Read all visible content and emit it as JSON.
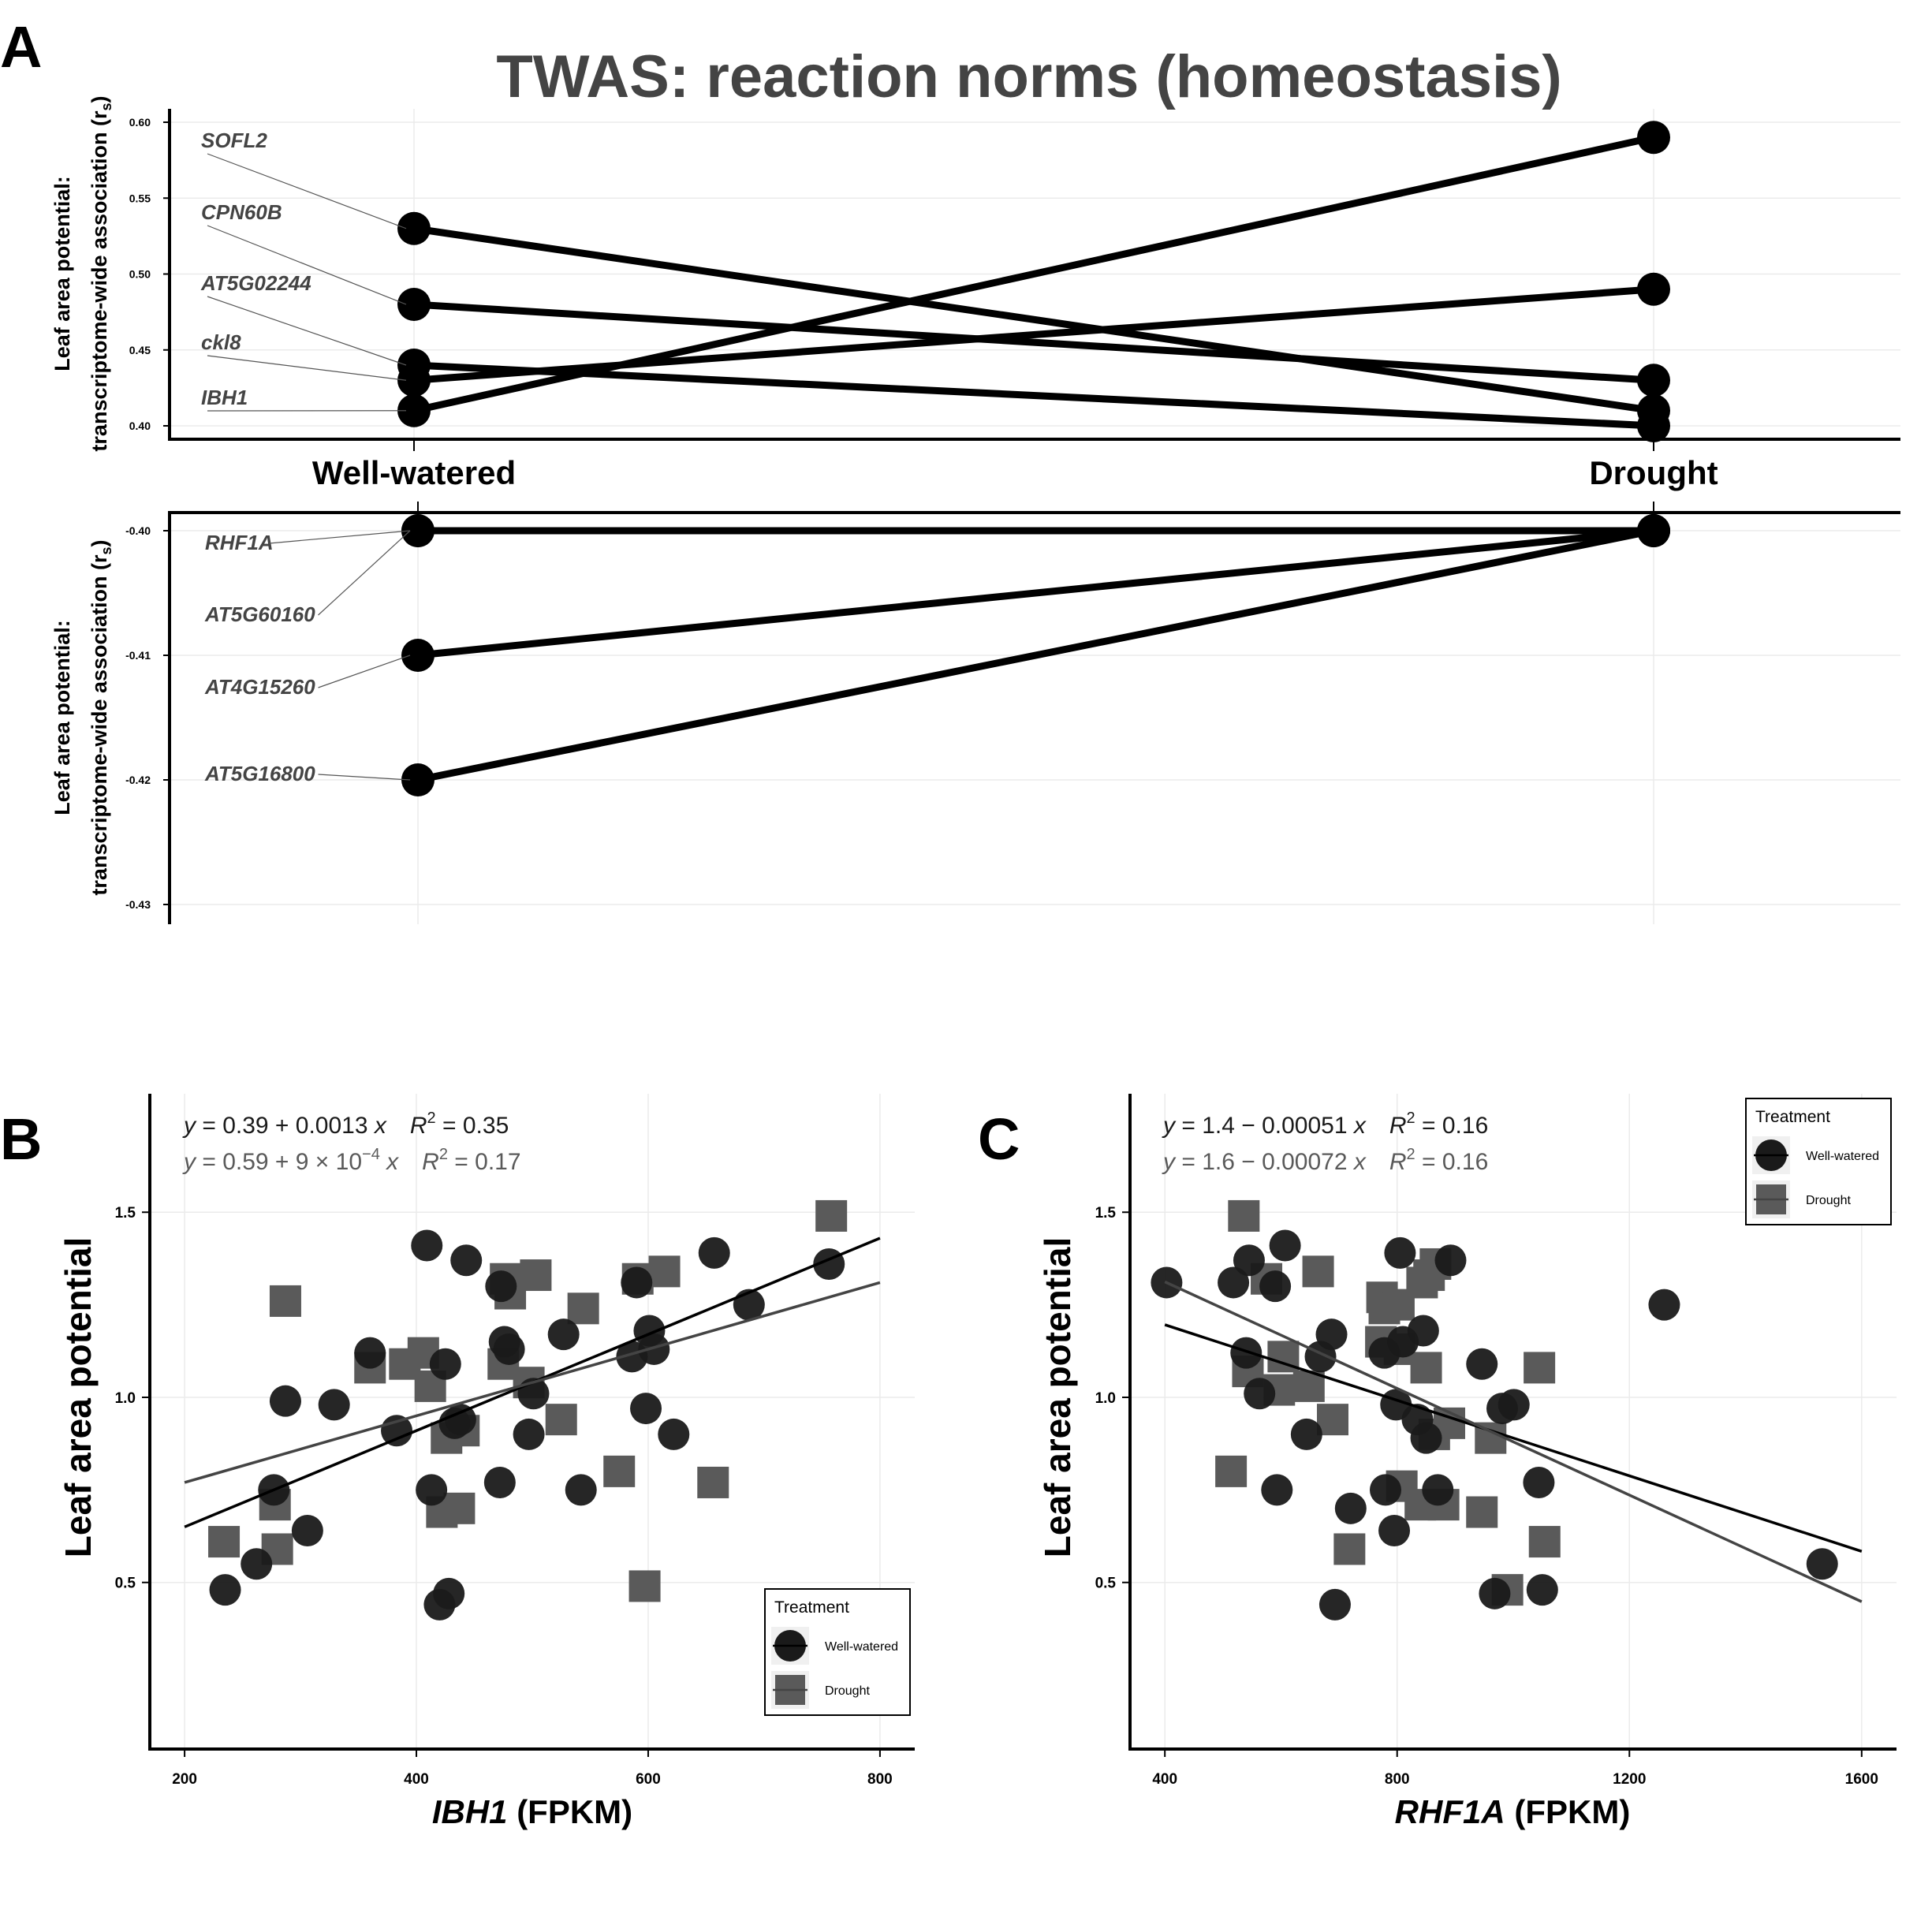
{
  "figure": {
    "panel_a_letter": "A",
    "panel_b_letter": "B",
    "panel_c_letter": "C",
    "title": "TWAS: reaction norms (homeostasis)",
    "panel_a_ylabel_line1": "Leaf area potential:",
    "panel_a_ylabel_line2": "transcriptome-wide association (r",
    "panel_a_ylabel_sub": "s",
    "panel_a_ylabel_close": ")",
    "conditions": [
      "Well-watered",
      "Drought"
    ],
    "bc_ylabel": "Leaf area potential",
    "b_xlabel_gene": "IBH1",
    "b_xlabel_unit": " (FPKM)",
    "c_xlabel_gene": "RHF1A",
    "c_xlabel_unit": " (FPKM)",
    "legend_title": "Treatment",
    "legend_items": [
      "Well-watered",
      "Drought"
    ],
    "b_eq1": {
      "pre": "y",
      "mid": " = 0.39 + 0.0013 ",
      "x": "x",
      "r2": "R",
      "sup": "2",
      "val": " = 0.35"
    },
    "b_eq2": {
      "pre": "y",
      "mid": " = 0.59 + 9 × 10",
      "exp": "−4",
      "x": " x",
      "r2": "R",
      "sup": "2",
      "val": " = 0.17"
    },
    "c_eq1": {
      "pre": "y",
      "mid": " = 1.4 − 0.00051 ",
      "x": "x",
      "r2": "R",
      "sup": "2",
      "val": " = 0.16"
    },
    "c_eq2": {
      "pre": "y",
      "mid": " = 1.6 − 0.00072 ",
      "x": "x",
      "r2": "R",
      "sup": "2",
      "val": " = 0.16"
    },
    "colors": {
      "well_watered": "#1a1a1a",
      "drought": "#5a5a5a",
      "title": "#444444",
      "grid": "#ebebeb"
    }
  },
  "chart_data": [
    {
      "type": "line",
      "panel": "A-top",
      "x": [
        "Well-watered",
        "Drought"
      ],
      "yticks": [
        0.4,
        0.45,
        0.5,
        0.55,
        0.6
      ],
      "ylim": [
        0.395,
        0.605
      ],
      "series": [
        {
          "name": "SOFL2",
          "values": [
            0.53,
            0.41
          ]
        },
        {
          "name": "CPN60B",
          "values": [
            0.48,
            0.43
          ]
        },
        {
          "name": "AT5G02244",
          "values": [
            0.44,
            0.4
          ]
        },
        {
          "name": "ckl8",
          "values": [
            0.43,
            0.49
          ]
        },
        {
          "name": "IBH1",
          "values": [
            0.41,
            0.59
          ]
        }
      ]
    },
    {
      "type": "line",
      "panel": "A-bottom",
      "x": [
        "Well-watered",
        "Drought"
      ],
      "yticks": [
        -0.4,
        -0.41,
        -0.42,
        -0.43
      ],
      "ylim": [
        -0.4315,
        -0.3985
      ],
      "series": [
        {
          "name": "RHF1A",
          "values": [
            -0.4,
            -0.4
          ]
        },
        {
          "name": "AT5G60160",
          "values": [
            -0.4,
            -0.4
          ]
        },
        {
          "name": "AT4G15260",
          "values": [
            -0.41,
            -0.4
          ]
        },
        {
          "name": "AT5G16800",
          "values": [
            -0.42,
            -0.4
          ]
        }
      ]
    },
    {
      "type": "scatter",
      "panel": "B",
      "xlabel": "IBH1 (FPKM)",
      "ylabel": "Leaf area potential",
      "xlim": [
        170,
        830
      ],
      "ylim": [
        0.05,
        1.82
      ],
      "xticks": [
        200,
        400,
        600,
        800
      ],
      "yticks": [
        0.5,
        1.0,
        1.5
      ],
      "legend": "bottom-right",
      "series": [
        {
          "name": "Well-watered",
          "points": [
            [
              235,
              0.48
            ],
            [
              262,
              0.55
            ],
            [
              277,
              0.75
            ],
            [
              287,
              0.99
            ],
            [
              306,
              0.64
            ],
            [
              329,
              0.98
            ],
            [
              360,
              1.12
            ],
            [
              383,
              0.91
            ],
            [
              409,
              1.41
            ],
            [
              413,
              0.75
            ],
            [
              420,
              0.44
            ],
            [
              425,
              1.09
            ],
            [
              428,
              0.47
            ],
            [
              433,
              0.93
            ],
            [
              438,
              0.94
            ],
            [
              443,
              1.37
            ],
            [
              472,
              0.77
            ],
            [
              473,
              1.3
            ],
            [
              476,
              1.15
            ],
            [
              480,
              1.13
            ],
            [
              497,
              0.9
            ],
            [
              501,
              1.01
            ],
            [
              527,
              1.17
            ],
            [
              542,
              0.75
            ],
            [
              586,
              1.11
            ],
            [
              590,
              1.31
            ],
            [
              598,
              0.97
            ],
            [
              601,
              1.18
            ],
            [
              605,
              1.13
            ],
            [
              622,
              0.9
            ],
            [
              657,
              1.39
            ],
            [
              687,
              1.25
            ],
            [
              756,
              1.36
            ]
          ],
          "fit": {
            "intercept": 0.39,
            "slope": 0.0013,
            "x": [
              200,
              800
            ]
          }
        },
        {
          "name": "Drought",
          "points": [
            [
              234,
              0.61
            ],
            [
              278,
              0.71
            ],
            [
              280,
              0.59
            ],
            [
              287,
              1.26
            ],
            [
              360,
              1.08
            ],
            [
              390,
              1.09
            ],
            [
              406,
              1.12
            ],
            [
              412,
              1.03
            ],
            [
              422,
              0.69
            ],
            [
              426,
              0.89
            ],
            [
              437,
              0.7
            ],
            [
              441,
              0.91
            ],
            [
              475,
              1.09
            ],
            [
              477,
              1.32
            ],
            [
              481,
              1.28
            ],
            [
              497,
              1.04
            ],
            [
              503,
              1.33
            ],
            [
              525,
              0.94
            ],
            [
              544,
              1.24
            ],
            [
              575,
              0.8
            ],
            [
              591,
              1.32
            ],
            [
              597,
              0.49
            ],
            [
              614,
              1.34
            ],
            [
              656,
              0.77
            ],
            [
              758,
              1.49
            ]
          ],
          "fit": {
            "intercept": 0.59,
            "slope": 0.0009,
            "x": [
              200,
              800
            ]
          }
        }
      ]
    },
    {
      "type": "scatter",
      "panel": "C",
      "xlabel": "RHF1A (FPKM)",
      "ylabel": "Leaf area potential",
      "xlim": [
        340,
        1660
      ],
      "ylim": [
        0.05,
        1.82
      ],
      "xticks": [
        400,
        800,
        1200,
        1600
      ],
      "yticks": [
        0.5,
        1.0,
        1.5
      ],
      "legend": "top-right",
      "series": [
        {
          "name": "Well-watered",
          "points": [
            [
              403,
              1.31
            ],
            [
              518,
              1.31
            ],
            [
              540,
              1.12
            ],
            [
              545,
              1.37
            ],
            [
              563,
              1.01
            ],
            [
              590,
              1.3
            ],
            [
              593,
              0.75
            ],
            [
              607,
              1.41
            ],
            [
              644,
              0.9
            ],
            [
              668,
              1.11
            ],
            [
              687,
              1.17
            ],
            [
              693,
              0.44
            ],
            [
              720,
              0.7
            ],
            [
              778,
              1.12
            ],
            [
              780,
              0.75
            ],
            [
              795,
              0.64
            ],
            [
              798,
              0.98
            ],
            [
              805,
              1.39
            ],
            [
              810,
              1.15
            ],
            [
              835,
              0.94
            ],
            [
              845,
              1.18
            ],
            [
              850,
              0.89
            ],
            [
              870,
              0.75
            ],
            [
              892,
              1.37
            ],
            [
              946,
              1.09
            ],
            [
              968,
              0.47
            ],
            [
              981,
              0.97
            ],
            [
              1001,
              0.98
            ],
            [
              1044,
              0.77
            ],
            [
              1050,
              0.48
            ],
            [
              1260,
              1.25
            ],
            [
              1532,
              0.55
            ]
          ],
          "fit": {
            "intercept": 1.4,
            "slope": -0.00051,
            "x": [
              400,
              1600
            ]
          }
        },
        {
          "name": "Drought",
          "points": [
            [
              514,
              0.8
            ],
            [
              536,
              1.49
            ],
            [
              543,
              1.07
            ],
            [
              575,
              1.32
            ],
            [
              597,
              1.02
            ],
            [
              604,
              1.11
            ],
            [
              648,
              1.03
            ],
            [
              664,
              1.34
            ],
            [
              689,
              0.94
            ],
            [
              718,
              0.59
            ],
            [
              772,
              1.15
            ],
            [
              774,
              1.27
            ],
            [
              778,
              1.24
            ],
            [
              803,
              1.25
            ],
            [
              804,
              1.13
            ],
            [
              808,
              0.76
            ],
            [
              840,
              0.71
            ],
            [
              843,
              1.31
            ],
            [
              850,
              1.08
            ],
            [
              855,
              1.33
            ],
            [
              864,
              0.9
            ],
            [
              866,
              1.36
            ],
            [
              880,
              0.71
            ],
            [
              890,
              0.93
            ],
            [
              946,
              0.69
            ],
            [
              961,
              0.89
            ],
            [
              990,
              0.48
            ],
            [
              1045,
              1.08
            ],
            [
              1054,
              0.61
            ]
          ],
          "fit": {
            "intercept": 1.6,
            "slope": -0.00072,
            "x": [
              400,
              1600
            ]
          }
        }
      ]
    }
  ]
}
